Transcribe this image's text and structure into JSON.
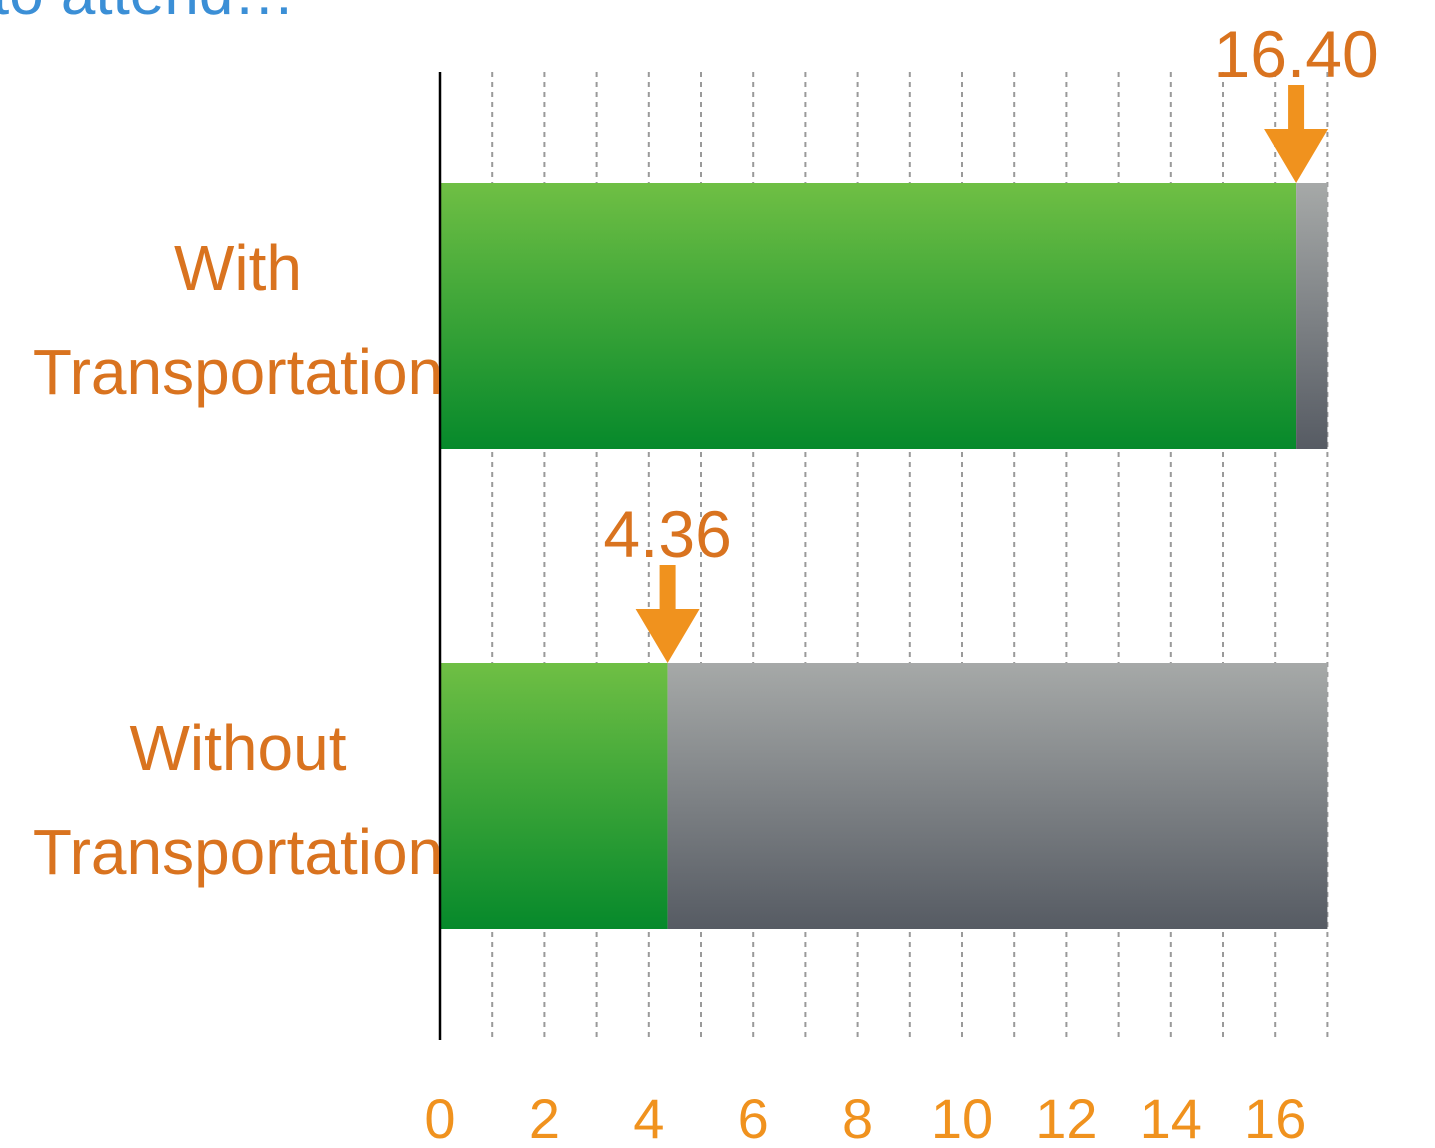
{
  "chart_data": {
    "type": "bar",
    "orientation": "horizontal",
    "stacked": true,
    "title": "to attend…",
    "categories": [
      "With Transportation",
      "Without Transportation"
    ],
    "category_lines": [
      [
        "With",
        "Transportation"
      ],
      [
        "Without",
        "Transportation"
      ]
    ],
    "series": [
      {
        "values": [
          16.4,
          4.36
        ],
        "color": "#2e9e3a"
      },
      {
        "values": [
          0.6,
          12.64
        ],
        "color": "#8a8d8f"
      }
    ],
    "value_labels": [
      "16.40",
      "4.36"
    ],
    "xticks": [
      "0",
      "2",
      "4",
      "6",
      "8",
      "10",
      "12",
      "14",
      "16"
    ],
    "xlim": [
      0,
      17
    ],
    "grid": true,
    "marker_color": "#f0921e"
  }
}
